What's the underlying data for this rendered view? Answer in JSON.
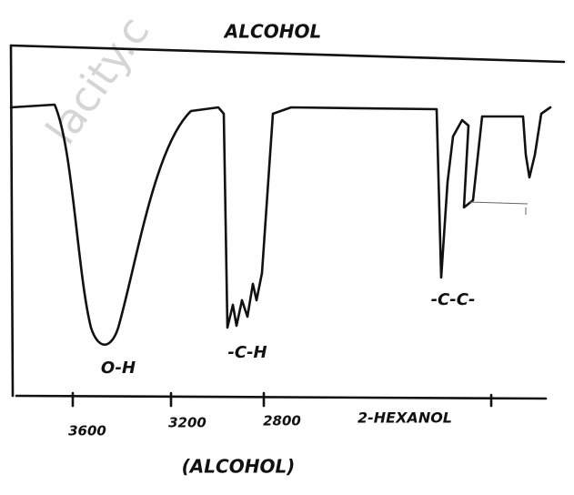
{
  "title": "ALCOHOL",
  "watermark": "lacity.c",
  "peak_labels": [
    "O-H",
    "-C-H",
    "-C-C-"
  ],
  "axis_labels": [
    "3600",
    "3200",
    "2800"
  ],
  "compound": "2-HEXANOL",
  "caption": "(ALCOHOL)"
}
